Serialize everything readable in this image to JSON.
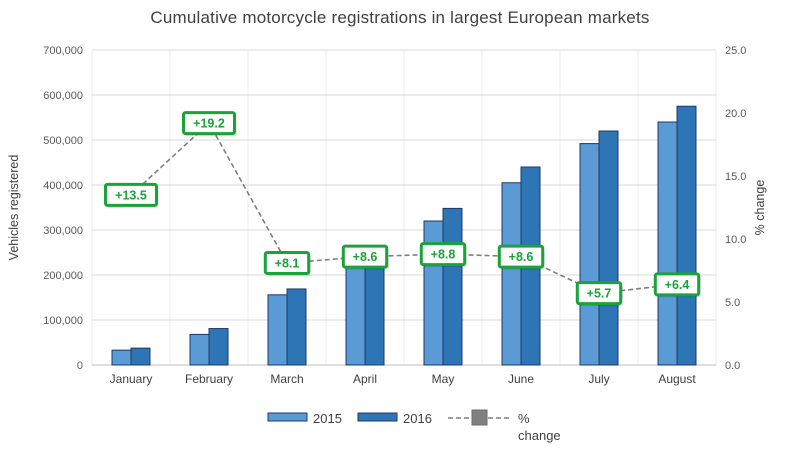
{
  "title": "Cumulative motorcycle registrations in largest European markets",
  "chart_data": {
    "type": "bar",
    "subtype": "bar+line combo, dual axis",
    "title": "Cumulative motorcycle registrations in largest European markets",
    "categories": [
      "January",
      "February",
      "March",
      "April",
      "May",
      "June",
      "July",
      "August"
    ],
    "series": [
      {
        "name": "2015",
        "type": "bar",
        "axis": "left",
        "color": "#5B9BD5",
        "values": [
          33000,
          68000,
          156000,
          240000,
          320000,
          405000,
          492000,
          540000
        ]
      },
      {
        "name": "2016",
        "type": "bar",
        "axis": "left",
        "color": "#2E75B6",
        "values": [
          37500,
          81000,
          169000,
          261000,
          348000,
          440000,
          520000,
          575000
        ]
      },
      {
        "name": "% change",
        "type": "line",
        "axis": "right",
        "color": "#7F7F7F",
        "line_style": "dashed",
        "marker": "square",
        "values": [
          13.5,
          19.2,
          8.1,
          8.6,
          8.8,
          8.6,
          5.7,
          6.4
        ],
        "point_labels": [
          "+13.5",
          "+19.2",
          "+8.1",
          "+8.6",
          "+8.8",
          "+8.6",
          "+5.7",
          "+6.4"
        ]
      }
    ],
    "left_axis": {
      "label": "Vehicles registered",
      "min": 0,
      "max": 700000,
      "step": 100000,
      "tick_labels": [
        "0",
        "100,000",
        "200,000",
        "300,000",
        "400,000",
        "500,000",
        "600,000",
        "700,000"
      ]
    },
    "right_axis": {
      "label": "% change",
      "min": 0,
      "max": 25,
      "step": 5,
      "tick_labels": [
        "0.0",
        "5.0",
        "10.0",
        "15.0",
        "20.0",
        "25.0"
      ]
    },
    "grid": true,
    "legend_position": "bottom",
    "legend": [
      {
        "label": "2015",
        "swatch": "bar",
        "color": "#5B9BD5"
      },
      {
        "label": "2016",
        "swatch": "bar",
        "color": "#2E75B6"
      },
      {
        "label": "% change",
        "swatch": "dashed-line-square-marker",
        "color": "#7F7F7F"
      }
    ],
    "colors": {
      "bar_border": "#1F3864",
      "annotation_border": "#1AA339",
      "annotation_text": "#1AA339",
      "annotation_fill": "#FFFFFF",
      "gridline": "#D9D9D9",
      "vertical_gridline": "#ECECEC",
      "tick_text": "#595959",
      "axis_title_text": "#404040",
      "month_text": "#3F3F3F",
      "dashed_line": "#7F7F7F"
    }
  }
}
